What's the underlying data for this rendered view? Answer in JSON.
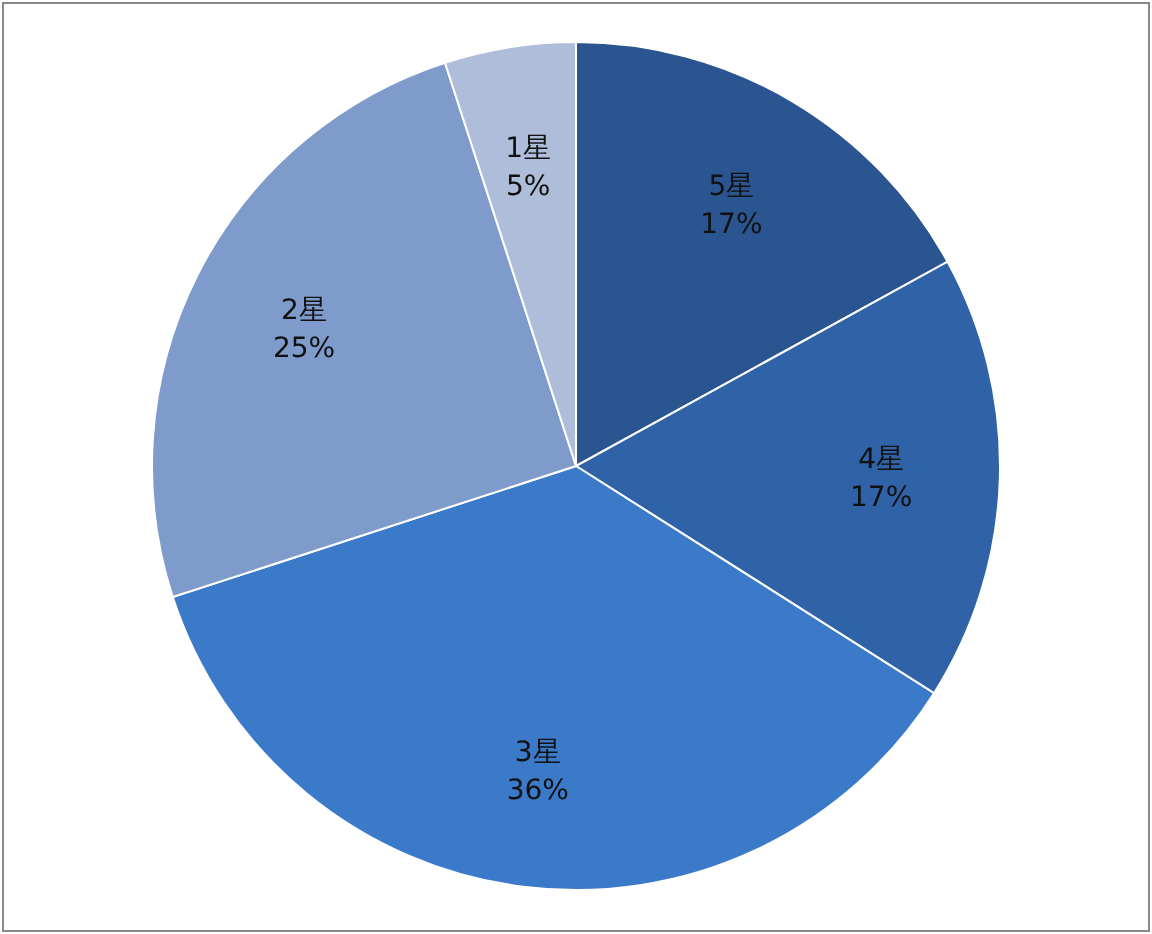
{
  "chart_data": {
    "type": "pie",
    "categories": [
      "5星",
      "4星",
      "3星",
      "2星",
      "1星"
    ],
    "values": [
      17,
      17,
      36,
      25,
      5
    ],
    "colors": [
      "#2b5590",
      "#2f62a6",
      "#3b79c9",
      "#7e9bcb",
      "#aebdda"
    ],
    "value_labels": [
      "17%",
      "17%",
      "36%",
      "25%",
      "5%"
    ],
    "legend": false
  }
}
